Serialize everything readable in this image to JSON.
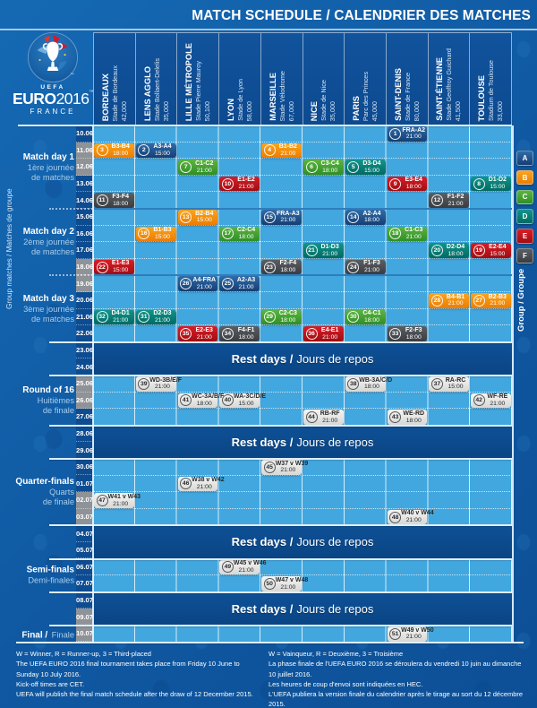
{
  "header": {
    "title": "MATCH SCHEDULE / CALENDRIER DES MATCHES"
  },
  "logo": {
    "uefa": "UEFA",
    "euro": "EURO",
    "year": "2016",
    "country": "FRANCE",
    "tm": "™"
  },
  "side": {
    "group_matches_caption": "Group matches / Matches de groupe",
    "group_caption": "Group / Groupe"
  },
  "rest_label": {
    "bold": "Rest days /",
    "regular": "Jours de repos"
  },
  "venues": [
    {
      "city": "BORDEAUX",
      "stadium": "Stade de Bordeaux",
      "capacity": "42,000"
    },
    {
      "city": "LENS AGGLO",
      "stadium": "Stade Bollaert-Delelis",
      "capacity": "35,000"
    },
    {
      "city": "LILLE MÉTROPOLE",
      "stadium": "Stade Pierre Mauroy",
      "capacity": "50,100"
    },
    {
      "city": "LYON",
      "stadium": "Stade de Lyon",
      "capacity": "58,000"
    },
    {
      "city": "MARSEILLE",
      "stadium": "Stade Vélodrome",
      "capacity": "67,000"
    },
    {
      "city": "NICE",
      "stadium": "Stade de Nice",
      "capacity": "35,000"
    },
    {
      "city": "PARIS",
      "stadium": "Parc des Princes",
      "capacity": "45,000"
    },
    {
      "city": "SAINT-DENIS",
      "stadium": "Stade de France",
      "capacity": "80,000"
    },
    {
      "city": "SAINT-ÉTIENNE",
      "stadium": "Stade Geoffroy Guichard",
      "capacity": "41,500"
    },
    {
      "city": "TOULOUSE",
      "stadium": "Stadium de Toulouse",
      "capacity": "33,000"
    }
  ],
  "calendar": {
    "dates": [
      {
        "label": "10.06",
        "weekend": false
      },
      {
        "label": "11.06",
        "weekend": true
      },
      {
        "label": "12.06",
        "weekend": true
      },
      {
        "label": "13.06",
        "weekend": false
      },
      {
        "label": "14.06",
        "weekend": false
      },
      {
        "label": "15.06",
        "weekend": false
      },
      {
        "label": "16.06",
        "weekend": false
      },
      {
        "label": "17.06",
        "weekend": false
      },
      {
        "label": "18.06",
        "weekend": true
      },
      {
        "label": "19.06",
        "weekend": true
      },
      {
        "label": "20.06",
        "weekend": false
      },
      {
        "label": "21.06",
        "weekend": false
      },
      {
        "label": "22.06",
        "weekend": false
      },
      {
        "label": "23.06",
        "weekend": false
      },
      {
        "label": "24.06",
        "weekend": false
      },
      {
        "label": "25.06",
        "weekend": true
      },
      {
        "label": "26.06",
        "weekend": true
      },
      {
        "label": "27.06",
        "weekend": false
      },
      {
        "label": "28.06",
        "weekend": false
      },
      {
        "label": "29.06",
        "weekend": false
      },
      {
        "label": "30.06",
        "weekend": false
      },
      {
        "label": "01.07",
        "weekend": false
      },
      {
        "label": "02.07",
        "weekend": true
      },
      {
        "label": "03.07",
        "weekend": true
      },
      {
        "label": "04.07",
        "weekend": false
      },
      {
        "label": "05.07",
        "weekend": false
      },
      {
        "label": "06.07",
        "weekend": false
      },
      {
        "label": "07.07",
        "weekend": false
      },
      {
        "label": "08.07",
        "weekend": false
      },
      {
        "label": "09.07",
        "weekend": true
      },
      {
        "label": "10.07",
        "weekend": true
      }
    ],
    "bands": [
      {
        "id": "md1",
        "kind": "grid",
        "rows": 5
      },
      {
        "id": "md2",
        "kind": "grid",
        "rows": 4
      },
      {
        "id": "md3",
        "kind": "grid",
        "rows": 4
      },
      {
        "id": "rest1",
        "kind": "rest",
        "rows": 2
      },
      {
        "id": "r16",
        "kind": "grid",
        "rows": 3
      },
      {
        "id": "rest2",
        "kind": "rest",
        "rows": 2
      },
      {
        "id": "qf",
        "kind": "grid",
        "rows": 4
      },
      {
        "id": "rest3",
        "kind": "rest",
        "rows": 2
      },
      {
        "id": "sf",
        "kind": "grid",
        "rows": 2
      },
      {
        "id": "rest4",
        "kind": "rest",
        "rows": 2
      },
      {
        "id": "final",
        "kind": "grid",
        "rows": 1
      }
    ]
  },
  "phases": [
    {
      "band": "md1",
      "title": "Match day 1",
      "lines": [
        "1ère journée",
        "de matches"
      ]
    },
    {
      "band": "md2",
      "title": "Match day 2",
      "lines": [
        "2ème journée",
        "de matches"
      ]
    },
    {
      "band": "md3",
      "title": "Match day 3",
      "lines": [
        "3ème journée",
        "de matches"
      ]
    },
    {
      "band": "r16",
      "title": "Round of 16",
      "lines": [
        "Huitièmes",
        "de finale"
      ]
    },
    {
      "band": "qf",
      "title": "Quarter-finals",
      "lines": [
        "Quarts",
        "de finale"
      ]
    },
    {
      "band": "sf",
      "title": "Semi-finals",
      "lines": [
        "Demi-finales"
      ]
    },
    {
      "band": "final",
      "title": "Final /",
      "inline": "Finale"
    }
  ],
  "legend": {
    "groups": [
      {
        "label": "A",
        "color": "#1b5494"
      },
      {
        "label": "B",
        "color": "#f39200"
      },
      {
        "label": "C",
        "color": "#39a02e"
      },
      {
        "label": "D",
        "color": "#0b827d"
      },
      {
        "label": "E",
        "color": "#c51422"
      },
      {
        "label": "F",
        "color": "#6f7276"
      }
    ]
  },
  "matches": [
    {
      "n": 1,
      "code": "FRA-A2",
      "time": "21:00",
      "date": "10.06",
      "venue": 7,
      "group": "A"
    },
    {
      "n": 2,
      "code": "A3-A4",
      "time": "15:00",
      "date": "11.06",
      "venue": 1,
      "group": "A"
    },
    {
      "n": 3,
      "code": "B3-B4",
      "time": "18:00",
      "date": "11.06",
      "venue": 0,
      "group": "B"
    },
    {
      "n": 4,
      "code": "B1-B2",
      "time": "21:00",
      "date": "11.06",
      "venue": 4,
      "group": "B"
    },
    {
      "n": 5,
      "code": "D3-D4",
      "time": "15:00",
      "date": "12.06",
      "venue": 6,
      "group": "D"
    },
    {
      "n": 6,
      "code": "C3-C4",
      "time": "18:00",
      "date": "12.06",
      "venue": 5,
      "group": "C"
    },
    {
      "n": 7,
      "code": "C1-C2",
      "time": "21:00",
      "date": "12.06",
      "venue": 2,
      "group": "C"
    },
    {
      "n": 8,
      "code": "D1-D2",
      "time": "15:00",
      "date": "13.06",
      "venue": 9,
      "group": "D"
    },
    {
      "n": 9,
      "code": "E3-E4",
      "time": "18:00",
      "date": "13.06",
      "venue": 7,
      "group": "E"
    },
    {
      "n": 10,
      "code": "E1-E2",
      "time": "21:00",
      "date": "13.06",
      "venue": 3,
      "group": "E"
    },
    {
      "n": 11,
      "code": "F3-F4",
      "time": "18:00",
      "date": "14.06",
      "venue": 0,
      "group": "F"
    },
    {
      "n": 12,
      "code": "F1-F2",
      "time": "21:00",
      "date": "14.06",
      "venue": 8,
      "group": "F"
    },
    {
      "n": 13,
      "code": "B2-B4",
      "time": "15:00",
      "date": "15.06",
      "venue": 2,
      "group": "B"
    },
    {
      "n": 14,
      "code": "A2-A4",
      "time": "18:00",
      "date": "15.06",
      "venue": 6,
      "group": "A"
    },
    {
      "n": 15,
      "code": "FRA-A3",
      "time": "21:00",
      "date": "15.06",
      "venue": 4,
      "group": "A"
    },
    {
      "n": 16,
      "code": "B1-B3",
      "time": "15:00",
      "date": "16.06",
      "venue": 1,
      "group": "B"
    },
    {
      "n": 17,
      "code": "C2-C4",
      "time": "18:00",
      "date": "16.06",
      "venue": 3,
      "group": "C"
    },
    {
      "n": 18,
      "code": "C1-C3",
      "time": "21:00",
      "date": "16.06",
      "venue": 7,
      "group": "C"
    },
    {
      "n": 19,
      "code": "E2-E4",
      "time": "15:00",
      "date": "17.06",
      "venue": 9,
      "group": "E"
    },
    {
      "n": 20,
      "code": "D2-D4",
      "time": "18:00",
      "date": "17.06",
      "venue": 8,
      "group": "D"
    },
    {
      "n": 21,
      "code": "D1-D3",
      "time": "21:00",
      "date": "17.06",
      "venue": 5,
      "group": "D"
    },
    {
      "n": 22,
      "code": "E1-E3",
      "time": "15:00",
      "date": "18.06",
      "venue": 0,
      "group": "E"
    },
    {
      "n": 23,
      "code": "F2-F4",
      "time": "18:00",
      "date": "18.06",
      "venue": 4,
      "group": "F"
    },
    {
      "n": 24,
      "code": "F1-F3",
      "time": "21:00",
      "date": "18.06",
      "venue": 6,
      "group": "F"
    },
    {
      "n": 25,
      "code": "A2-A3",
      "time": "21:00",
      "date": "19.06",
      "venue": 3,
      "group": "A"
    },
    {
      "n": 26,
      "code": "A4-FRA",
      "time": "21:00",
      "date": "19.06",
      "venue": 2,
      "group": "A"
    },
    {
      "n": 27,
      "code": "B2-B3",
      "time": "21:00",
      "date": "20.06",
      "venue": 9,
      "group": "B"
    },
    {
      "n": 28,
      "code": "B4-B1",
      "time": "21:00",
      "date": "20.06",
      "venue": 8,
      "group": "B"
    },
    {
      "n": 29,
      "code": "C2-C3",
      "time": "18:00",
      "date": "21.06",
      "venue": 4,
      "group": "C"
    },
    {
      "n": 30,
      "code": "C4-C1",
      "time": "18:00",
      "date": "21.06",
      "venue": 6,
      "group": "C"
    },
    {
      "n": 31,
      "code": "D2-D3",
      "time": "21:00",
      "date": "21.06",
      "venue": 1,
      "group": "D"
    },
    {
      "n": 32,
      "code": "D4-D1",
      "time": "21:00",
      "date": "21.06",
      "venue": 0,
      "group": "D"
    },
    {
      "n": 33,
      "code": "F2-F3",
      "time": "18:00",
      "date": "22.06",
      "venue": 7,
      "group": "F"
    },
    {
      "n": 34,
      "code": "F4-F1",
      "time": "18:00",
      "date": "22.06",
      "venue": 3,
      "group": "F"
    },
    {
      "n": 35,
      "code": "E2-E3",
      "time": "21:00",
      "date": "22.06",
      "venue": 2,
      "group": "E"
    },
    {
      "n": 36,
      "code": "E4-E1",
      "time": "21:00",
      "date": "22.06",
      "venue": 5,
      "group": "E"
    },
    {
      "n": 37,
      "code": "RA-RC",
      "time": "15:00",
      "date": "25.06",
      "venue": 8,
      "group": "KO"
    },
    {
      "n": 38,
      "code": "WB-3A/C/D",
      "time": "18:00",
      "date": "25.06",
      "venue": 6,
      "group": "KO"
    },
    {
      "n": 39,
      "code": "WD-3B/E/F",
      "time": "21:00",
      "date": "25.06",
      "venue": 1,
      "group": "KO"
    },
    {
      "n": 40,
      "code": "WA-3C/D/E",
      "time": "15:00",
      "date": "26.06",
      "venue": 3,
      "group": "KO"
    },
    {
      "n": 41,
      "code": "WC-3A/B/F",
      "time": "18:00",
      "date": "26.06",
      "venue": 2,
      "group": "KO"
    },
    {
      "n": 42,
      "code": "WF-RE",
      "time": "21:00",
      "date": "26.06",
      "venue": 9,
      "group": "KO"
    },
    {
      "n": 43,
      "code": "WE-RD",
      "time": "18:00",
      "date": "27.06",
      "venue": 7,
      "group": "KO"
    },
    {
      "n": 44,
      "code": "RB-RF",
      "time": "21:00",
      "date": "27.06",
      "venue": 5,
      "group": "KO"
    },
    {
      "n": 45,
      "code": "W37 v W39",
      "time": "21:00",
      "date": "30.06",
      "venue": 4,
      "group": "KO"
    },
    {
      "n": 46,
      "code": "W38 v W42",
      "time": "21:00",
      "date": "01.07",
      "venue": 2,
      "group": "KO"
    },
    {
      "n": 47,
      "code": "W41 v W43",
      "time": "21:00",
      "date": "02.07",
      "venue": 0,
      "group": "KO"
    },
    {
      "n": 48,
      "code": "W40 v W44",
      "time": "21:00",
      "date": "03.07",
      "venue": 7,
      "group": "KO"
    },
    {
      "n": 49,
      "code": "W45 v W46",
      "time": "21:00",
      "date": "06.07",
      "venue": 3,
      "group": "KO"
    },
    {
      "n": 50,
      "code": "W47 v W48",
      "time": "21:00",
      "date": "07.07",
      "venue": 4,
      "group": "KO"
    },
    {
      "n": 51,
      "code": "W49 v W50",
      "time": "21:00",
      "date": "10.07",
      "venue": 7,
      "group": "KO"
    }
  ],
  "footer": {
    "en": [
      "W = Winner, R = Runner-up, 3 = Third-placed",
      "The UEFA EURO 2016 final tournament takes place from Friday 10 June to Sunday 10 July 2016.",
      "Kick-off times are CET.",
      "UEFA will publish the final match schedule after the draw of 12 December 2015."
    ],
    "fr": [
      "W = Vainqueur, R = Deuxième, 3 = Troisième",
      "La phase finale de l'UEFA EURO 2016 se déroulera du vendredi 10 juin au dimanche 10 juillet 2016.",
      "Les heures de coup d'envoi sont indiquées en HEC.",
      "L'UEFA publiera la version finale du calendrier après le tirage au sort du 12 décembre 2015."
    ]
  }
}
